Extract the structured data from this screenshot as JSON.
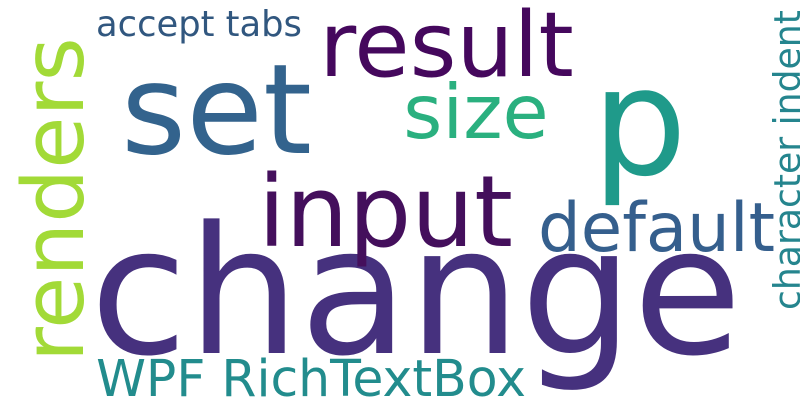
{
  "background": "#ffffff",
  "words": [
    {
      "id": "change",
      "text": "change",
      "color": "#46317e",
      "orientation": "horizontal"
    },
    {
      "id": "p",
      "text": "p",
      "color": "#1f9a8a",
      "orientation": "horizontal"
    },
    {
      "id": "set",
      "text": "set",
      "color": "#33638d",
      "orientation": "horizontal"
    },
    {
      "id": "input",
      "text": "input",
      "color": "#440f5c",
      "orientation": "horizontal"
    },
    {
      "id": "result",
      "text": "result",
      "color": "#45085d",
      "orientation": "horizontal"
    },
    {
      "id": "renders",
      "text": "renders",
      "color": "#a2da37",
      "orientation": "vertical"
    },
    {
      "id": "default",
      "text": "default",
      "color": "#355f8d",
      "orientation": "horizontal"
    },
    {
      "id": "size",
      "text": "size",
      "color": "#2ab07f",
      "orientation": "horizontal"
    },
    {
      "id": "wpf",
      "text": "WPF RichTextBox",
      "color": "#228c8d",
      "orientation": "horizontal"
    },
    {
      "id": "char-indent",
      "text": "character indent",
      "color": "#25858e",
      "orientation": "vertical"
    },
    {
      "id": "accept-tabs",
      "text": "accept tabs",
      "color": "#31577f",
      "orientation": "horizontal"
    }
  ]
}
